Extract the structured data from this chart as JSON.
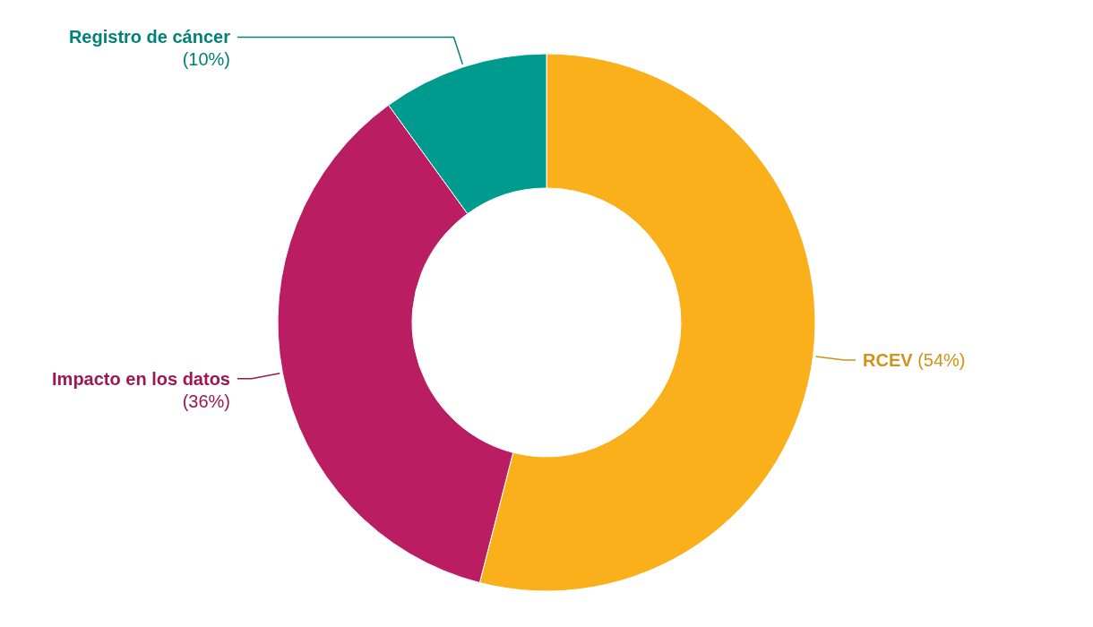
{
  "chart_data": {
    "type": "donut",
    "categories": [
      "RCEV",
      "Impacto en los datos",
      "Registro de cáncer"
    ],
    "values": [
      54,
      36,
      10
    ],
    "value_labels": [
      "(54%)",
      "(36%)",
      "(10%)"
    ],
    "colors": [
      "#f9b01a",
      "#bb1d63",
      "#009b8f"
    ]
  }
}
